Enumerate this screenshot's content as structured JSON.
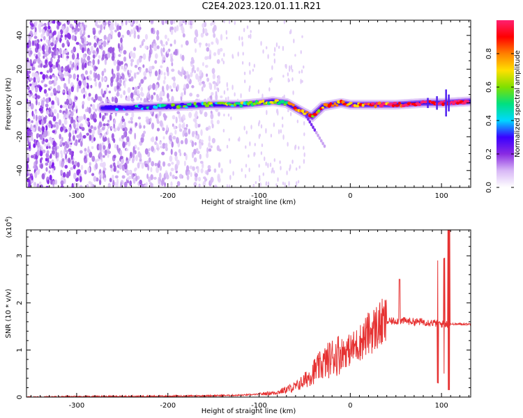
{
  "title": "C2E4.2023.120.01.11.R21",
  "chart_data": [
    {
      "type": "heatmap",
      "xlabel": "Height of straight line (km)",
      "ylabel": "Frequency (Hz)",
      "xlim": [
        -355,
        132
      ],
      "ylim": [
        -50,
        49
      ],
      "xticks": [
        -300,
        -200,
        -100,
        0,
        100
      ],
      "yticks": [
        -40,
        -20,
        0,
        20,
        40
      ],
      "colorbar": {
        "label": "Normalized spectral amplitude",
        "range": [
          0,
          1
        ],
        "ticks": [
          "0.0",
          "0.2",
          "0.4",
          "0.6",
          "0.8"
        ],
        "colors": [
          "#ffffff",
          "#d8b8f6",
          "#8a2be2",
          "#3a00ff",
          "#00d8ff",
          "#00e080",
          "#80e000",
          "#ffe000",
          "#ff8000",
          "#ff0000",
          "#ff2070"
        ]
      },
      "ridge": {
        "x": [
          -270,
          -250,
          -200,
          -150,
          -120,
          -100,
          -85,
          -70,
          -60,
          -50,
          -42,
          -30,
          -10,
          0,
          20,
          50,
          80,
          100,
          132
        ],
        "freq_hz": [
          -3,
          -3,
          -2,
          -1,
          -1,
          0,
          1,
          0,
          -3,
          -6,
          -8,
          -2,
          0,
          -1,
          -1,
          -1,
          0,
          0,
          1
        ]
      }
    },
    {
      "type": "line",
      "xlabel": "Height of straight line (km)",
      "ylabel": "SNR (10 * v/v)",
      "yunit_label": "(x10",
      "yunit_exp": "4",
      "yunit_close": ")",
      "xlim": [
        -355,
        132
      ],
      "ylim": [
        0,
        3.55
      ],
      "xticks": [
        -300,
        -200,
        -100,
        0,
        100
      ],
      "yticks": [
        0,
        1,
        2,
        3
      ],
      "color": "#e63232",
      "series": [
        {
          "x": [
            -355,
            -300,
            -200,
            -150,
            -120,
            -100,
            -80,
            -60,
            -50,
            -40,
            -30,
            -20,
            -10,
            0,
            10,
            20,
            30,
            40,
            50,
            60,
            70,
            80,
            90,
            100,
            105,
            110,
            132
          ],
          "y": [
            0.0,
            0.01,
            0.02,
            0.03,
            0.04,
            0.06,
            0.1,
            0.22,
            0.35,
            0.55,
            0.7,
            0.85,
            0.95,
            1.0,
            1.15,
            1.35,
            1.5,
            1.6,
            1.62,
            1.62,
            1.6,
            1.6,
            1.58,
            1.55,
            1.55,
            1.55,
            1.55
          ]
        }
      ]
    }
  ]
}
